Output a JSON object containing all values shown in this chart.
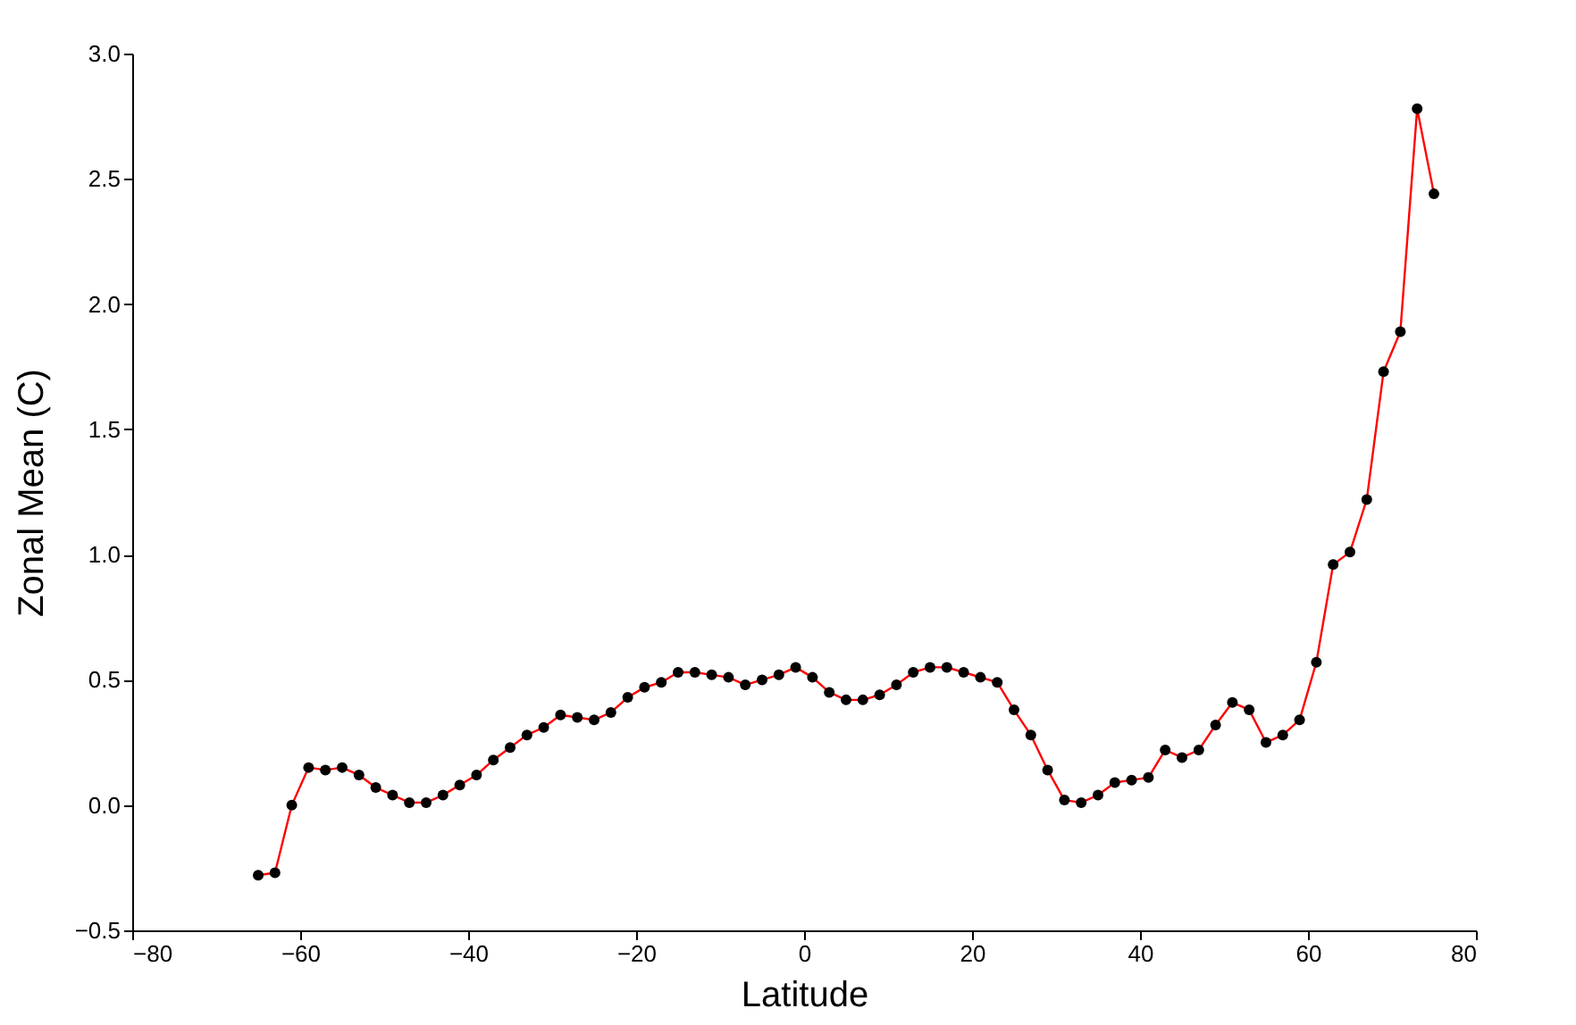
{
  "chart_data": {
    "type": "line",
    "xlabel": "Latitude",
    "ylabel": "Zonal Mean (C)",
    "x": [
      -65,
      -63,
      -61,
      -59,
      -57,
      -55,
      -53,
      -51,
      -49,
      -47,
      -45,
      -43,
      -41,
      -39,
      -37,
      -35,
      -33,
      -31,
      -29,
      -27,
      -25,
      -23,
      -21,
      -19,
      -17,
      -15,
      -13,
      -11,
      -9,
      -7,
      -5,
      -3,
      -1,
      1,
      3,
      5,
      7,
      9,
      11,
      13,
      15,
      17,
      19,
      21,
      23,
      25,
      27,
      29,
      31,
      33,
      35,
      37,
      39,
      41,
      43,
      45,
      47,
      49,
      51,
      53,
      55,
      57,
      59,
      61,
      63,
      65,
      67,
      69,
      71,
      73,
      75
    ],
    "series": [
      {
        "color": "#ff0000",
        "values": [
          -0.28,
          -0.27,
          0.0,
          0.15,
          0.14,
          0.15,
          0.12,
          0.07,
          0.04,
          0.01,
          0.01,
          0.04,
          0.08,
          0.12,
          0.18,
          0.23,
          0.28,
          0.31,
          0.36,
          0.35,
          0.34,
          0.37,
          0.43,
          0.47,
          0.49,
          0.53,
          0.53,
          0.52,
          0.51,
          0.48,
          0.5,
          0.52,
          0.55,
          0.51,
          0.45,
          0.42,
          0.42,
          0.44,
          0.48,
          0.53,
          0.55,
          0.55,
          0.53,
          0.51,
          0.49,
          0.38,
          0.28,
          0.14,
          0.02,
          0.01,
          0.04,
          0.09,
          0.1,
          0.11,
          0.22,
          0.19,
          0.22,
          0.32,
          0.41,
          0.38,
          0.25,
          0.28,
          0.34,
          0.57,
          0.96,
          1.01,
          1.22,
          1.73,
          1.89,
          2.78,
          2.44
        ]
      }
    ],
    "marker": "circle",
    "grid": false,
    "legend": false,
    "xlim": [
      -80,
      80
    ],
    "xticks": [
      -80,
      -60,
      -40,
      -20,
      0,
      20,
      40,
      60,
      80
    ],
    "ylim": [
      -0.5,
      3.0
    ],
    "yticks": [
      -0.5,
      {
        "value": 0,
        "label": "0.0"
      },
      0.5,
      {
        "value": 1,
        "label": "1.0"
      },
      1.5,
      {
        "value": 2,
        "label": "2.0"
      },
      2.5,
      {
        "value": 3,
        "label": "3.0"
      }
    ]
  }
}
